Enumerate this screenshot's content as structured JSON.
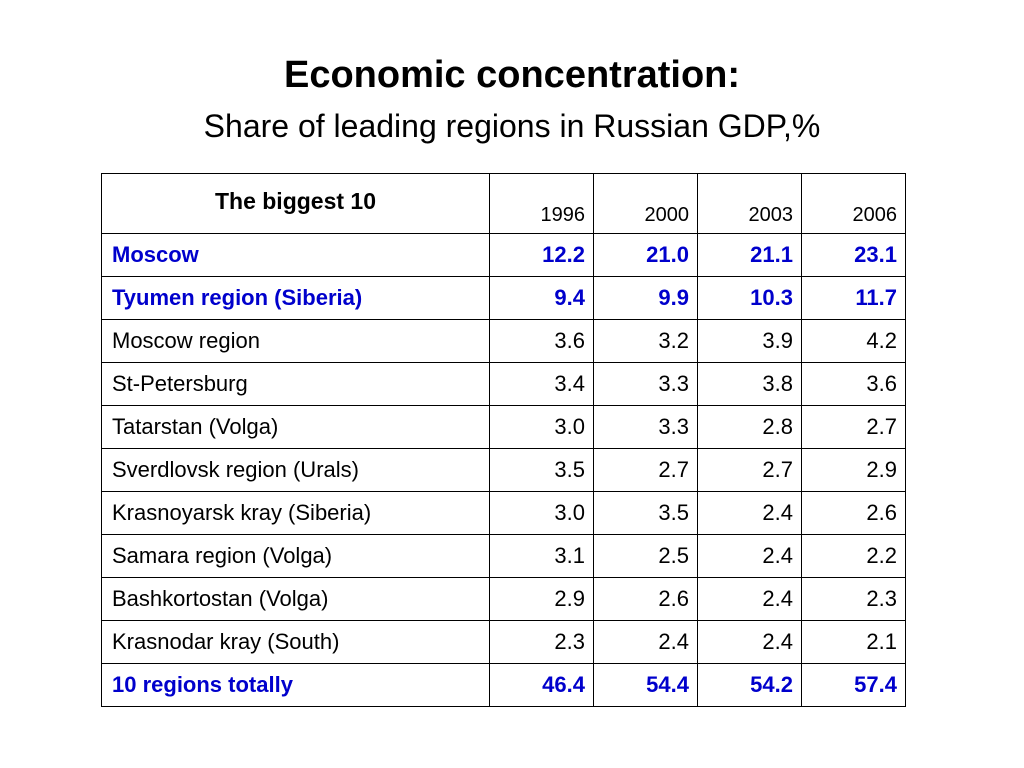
{
  "title": "Economic concentration:",
  "subtitle": "Share of leading regions in Russian GDP,%",
  "table": {
    "header_label": "The biggest 10",
    "years": [
      "1996",
      "2000",
      "2003",
      "2006"
    ],
    "rows": [
      {
        "name": "Moscow",
        "values": [
          "12.2",
          "21.0",
          "21.1",
          "23.1"
        ],
        "highlight": true
      },
      {
        "name": "Tyumen region (Siberia)",
        "values": [
          "9.4",
          "9.9",
          "10.3",
          "11.7"
        ],
        "highlight": true
      },
      {
        "name": "Moscow region",
        "values": [
          "3.6",
          "3.2",
          "3.9",
          "4.2"
        ],
        "highlight": false
      },
      {
        "name": "St-Petersburg",
        "values": [
          "3.4",
          "3.3",
          "3.8",
          "3.6"
        ],
        "highlight": false
      },
      {
        "name": "Tatarstan (Volga)",
        "values": [
          "3.0",
          "3.3",
          "2.8",
          "2.7"
        ],
        "highlight": false
      },
      {
        "name": "Sverdlovsk region (Urals)",
        "values": [
          "3.5",
          "2.7",
          "2.7",
          "2.9"
        ],
        "highlight": false
      },
      {
        "name": "Krasnoyarsk kray (Siberia)",
        "values": [
          "3.0",
          "3.5",
          "2.4",
          "2.6"
        ],
        "highlight": false
      },
      {
        "name": "Samara region (Volga)",
        "values": [
          "3.1",
          "2.5",
          "2.4",
          "2.2"
        ],
        "highlight": false
      },
      {
        "name": "Bashkortostan (Volga)",
        "values": [
          "2.9",
          "2.6",
          "2.4",
          "2.3"
        ],
        "highlight": false
      },
      {
        "name": "Krasnodar kray (South)",
        "values": [
          "2.3",
          "2.4",
          "2.4",
          "2.1"
        ],
        "highlight": false
      },
      {
        "name": "10 regions totally",
        "values": [
          "46.4",
          "54.4",
          "54.2",
          "57.4"
        ],
        "highlight": true
      }
    ]
  },
  "colors": {
    "highlight_text": "#0000cc",
    "text": "#000000",
    "border": "#000000",
    "background": "#ffffff"
  }
}
